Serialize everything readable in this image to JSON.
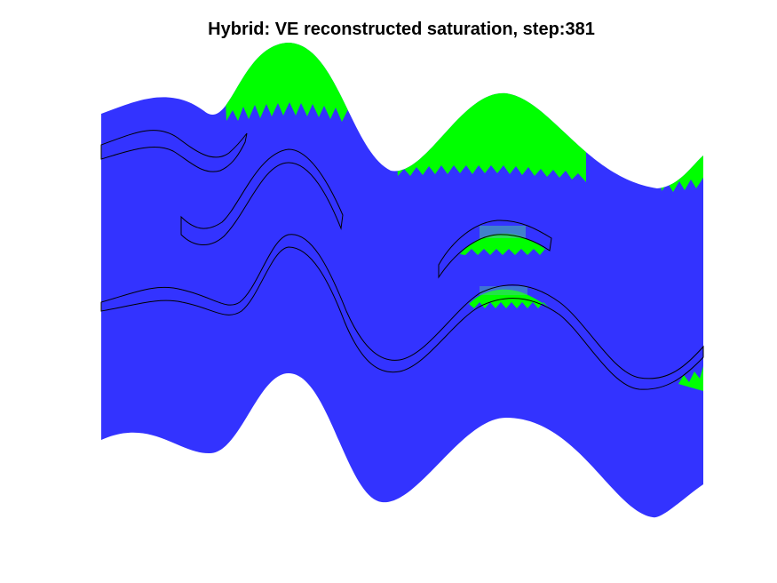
{
  "figure": {
    "title": "Hybrid: VE reconstructed saturation, step:381"
  },
  "colors": {
    "background": "#ffffff",
    "brine": "#3333ff",
    "co2": "#00ff00",
    "outline": "#000000"
  },
  "legend": []
}
